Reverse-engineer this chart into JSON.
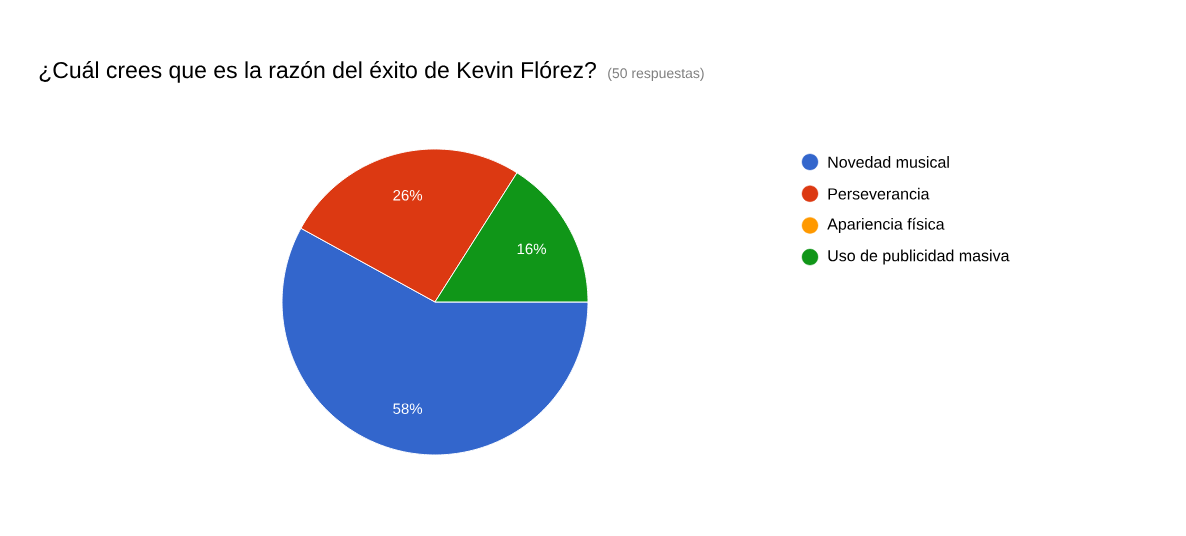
{
  "chart_data": {
    "type": "pie",
    "title": "¿Cuál crees que es la razón del éxito de Kevin Flórez?",
    "subtitle": "(50 respuestas)",
    "categories": [
      "Novedad musical",
      "Perseverancia",
      "Apariencia física",
      "Uso de publicidad masiva"
    ],
    "values": [
      58,
      26,
      0,
      16
    ],
    "colors": [
      "#3366cc",
      "#dc3912",
      "#ff9900",
      "#109618"
    ],
    "value_labels": [
      "58%",
      "26%",
      null,
      "16%"
    ],
    "legend": "right"
  }
}
